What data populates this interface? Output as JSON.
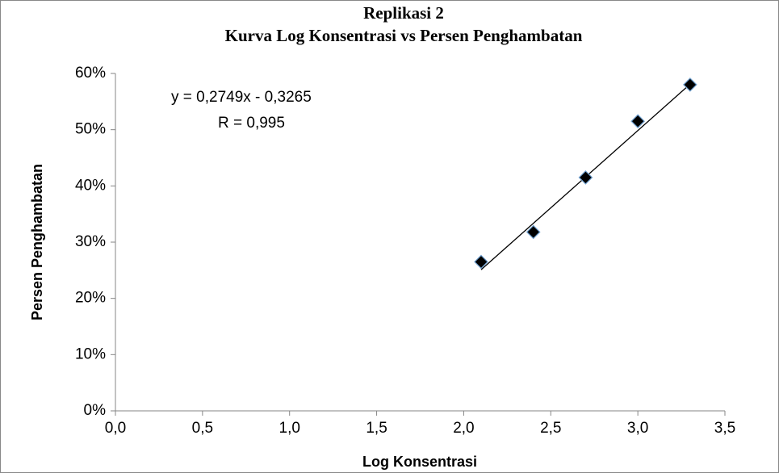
{
  "chart_data": {
    "type": "scatter",
    "title": "Replikasi 2",
    "subtitle": "Kurva Log Konsentrasi vs Persen Penghambatan",
    "x_label": "Log Konsentrasi",
    "y_label": "Persen Penghambatan",
    "annotations": [
      "y = 0,2749x - 0,3265",
      "R = 0,995"
    ],
    "series": [
      {
        "name": "Replikasi 2",
        "color": "#000000",
        "x": [
          2.1,
          2.4,
          2.7,
          3.0,
          3.3
        ],
        "values": [
          26.5,
          31.8,
          41.5,
          51.5,
          58.0
        ]
      }
    ],
    "trendline": {
      "color": "#000000",
      "x": [
        2.1,
        3.3
      ],
      "values": [
        25.1,
        58.1
      ]
    },
    "xlim": [
      0,
      3.5
    ],
    "xticks": [
      {
        "value": 0,
        "label": "0,0"
      },
      {
        "value": 0.5,
        "label": "0,5"
      },
      {
        "value": 1,
        "label": "1,0"
      },
      {
        "value": 1.5,
        "label": "1,5"
      },
      {
        "value": 2,
        "label": "2,0"
      },
      {
        "value": 2.5,
        "label": "2,5"
      },
      {
        "value": 3,
        "label": "3,0"
      },
      {
        "value": 3.5,
        "label": "3,5"
      }
    ],
    "ylim": [
      0,
      60
    ],
    "yticks": [
      {
        "value": 0,
        "label": "0%"
      },
      {
        "value": 10,
        "label": "10%"
      },
      {
        "value": 20,
        "label": "20%"
      },
      {
        "value": 30,
        "label": "30%"
      },
      {
        "value": 40,
        "label": "40%"
      },
      {
        "value": 50,
        "label": "50%"
      },
      {
        "value": 60,
        "label": "60%"
      }
    ],
    "grid": false
  }
}
